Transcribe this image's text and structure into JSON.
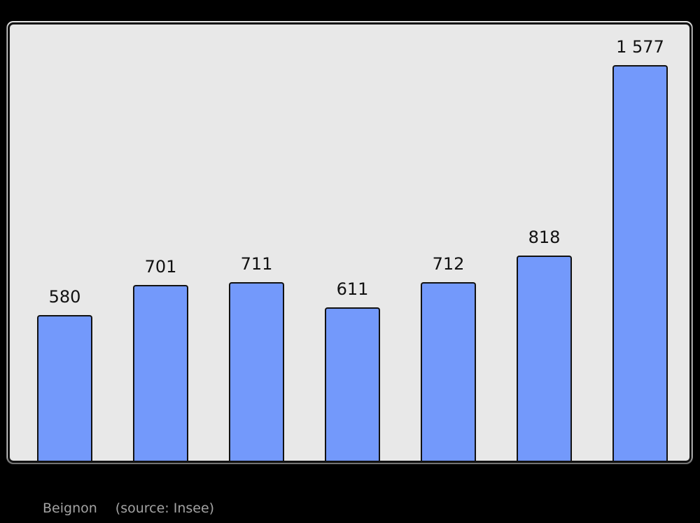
{
  "page": {
    "background": "#000000"
  },
  "chart_data": {
    "type": "bar",
    "values": [
      580,
      701,
      711,
      611,
      712,
      818,
      1577
    ],
    "bar_labels": [
      "580",
      "701",
      "711",
      "611",
      "712",
      "818",
      "1 577"
    ],
    "categories": [],
    "title": "",
    "xlabel": "",
    "ylabel": "",
    "ylim": [
      0,
      1740
    ],
    "grid": false,
    "legend": "none",
    "value_labels_position": "above-bars",
    "colors": {
      "bar_fill": "#7399fb",
      "bar_border": "#111111",
      "plot_background": "#e8e8e8",
      "frame_border": "#111111",
      "value_label": "#111111"
    }
  },
  "caption": {
    "commune_label": "Beignon",
    "source_label": "(source: Insee)",
    "color": "#a3a3a3"
  }
}
